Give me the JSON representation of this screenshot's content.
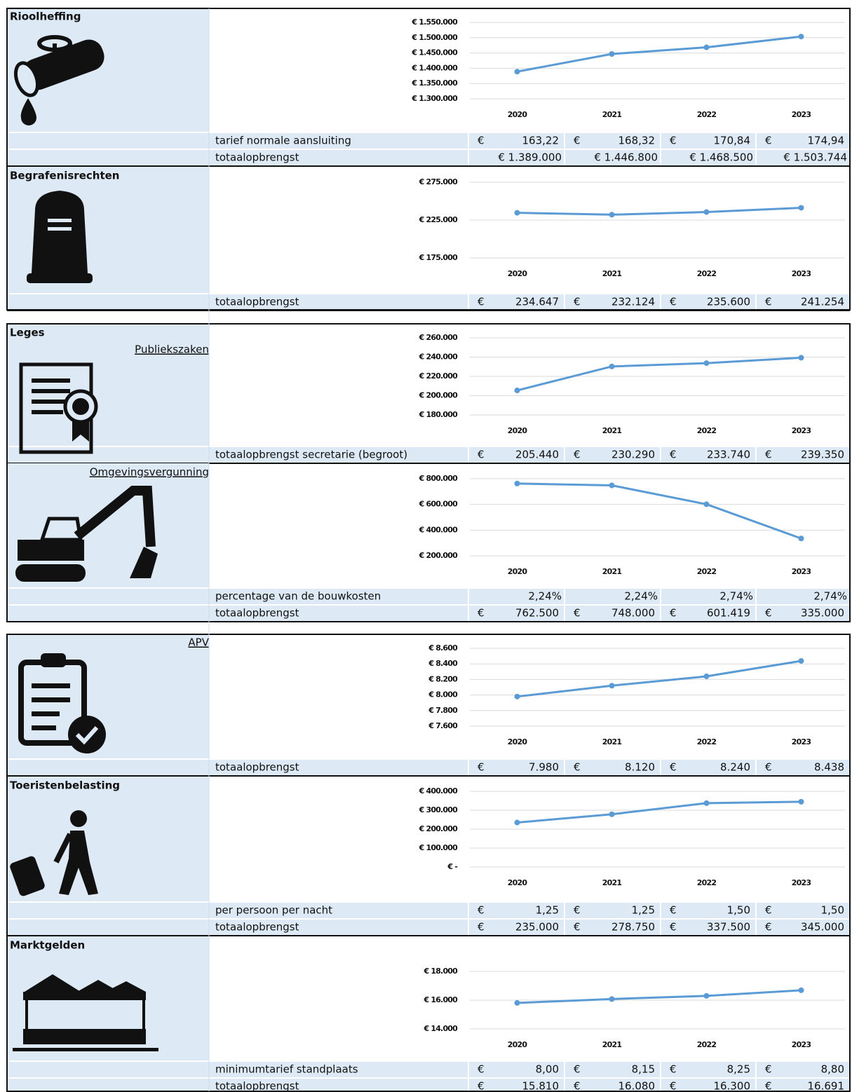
{
  "sections": [
    {
      "title": "Rioolheffing",
      "chart": {
        "type": "line",
        "x": [
          "2020",
          "2021",
          "2022",
          "2023"
        ],
        "values": [
          1389000,
          1446800,
          1468500,
          1503744
        ],
        "color": "#5b9bd5",
        "ylim": [
          1300000,
          1550000
        ],
        "yticks": [
          {
            "value": 1300000,
            "label": "€ 1.300.000"
          },
          {
            "value": 1350000,
            "label": "€ 1.350.000"
          },
          {
            "value": 1400000,
            "label": "€ 1.400.000"
          },
          {
            "value": 1450000,
            "label": "€ 1.450.000"
          },
          {
            "value": 1500000,
            "label": "€ 1.500.000"
          },
          {
            "value": 1550000,
            "label": "€ 1.550.000"
          }
        ],
        "grid": true
      },
      "rows": [
        {
          "label": "tarief normale aansluiting",
          "cells": [
            [
              "€",
              "163,22"
            ],
            [
              "€",
              "168,32"
            ],
            [
              "€",
              "170,84"
            ],
            [
              "€",
              "174,94"
            ]
          ]
        },
        {
          "label": "totaalopbrengst",
          "cells": [
            "€ 1.389.000",
            "€ 1.446.800",
            "€ 1.468.500",
            "€ 1.503.744"
          ]
        }
      ]
    },
    {
      "title": "Begrafenisrechten",
      "chart": {
        "type": "line",
        "x": [
          "2020",
          "2021",
          "2022",
          "2023"
        ],
        "values": [
          234647,
          232124,
          235600,
          241254
        ],
        "color": "#5b9bd5",
        "ylim": [
          175000,
          275000
        ],
        "yticks": [
          {
            "value": 175000,
            "label": "€ 175.000"
          },
          {
            "value": 225000,
            "label": "€ 225.000"
          },
          {
            "value": 275000,
            "label": "€ 275.000"
          }
        ],
        "grid": true
      },
      "rows": [
        {
          "label": "totaalopbrengst",
          "cells": [
            [
              "€",
              "234.647"
            ],
            [
              "€",
              "232.124"
            ],
            [
              "€",
              "235.600"
            ],
            [
              "€",
              "241.254"
            ]
          ]
        }
      ]
    },
    {
      "title": "Leges",
      "link": "Publiekszaken",
      "chart": {
        "type": "line",
        "x": [
          "2020",
          "2021",
          "2022",
          "2023"
        ],
        "values": [
          205440,
          230290,
          233740,
          239350
        ],
        "color": "#5b9bd5",
        "ylim": [
          180000,
          260000
        ],
        "yticks": [
          {
            "value": 180000,
            "label": "€ 180.000"
          },
          {
            "value": 200000,
            "label": "€ 200.000"
          },
          {
            "value": 220000,
            "label": "€ 220.000"
          },
          {
            "value": 240000,
            "label": "€ 240.000"
          },
          {
            "value": 260000,
            "label": "€ 260.000"
          }
        ],
        "grid": true
      },
      "rows": [
        {
          "label": "totaalopbrengst secretarie (begroot)",
          "cells": [
            [
              "€",
              "205.440"
            ],
            [
              "€",
              "230.290"
            ],
            [
              "€",
              "233.740"
            ],
            [
              "€",
              "239.350"
            ]
          ]
        }
      ]
    },
    {
      "link": "Omgevingsvergunning",
      "chart": {
        "type": "line",
        "x": [
          "2020",
          "2021",
          "2022",
          "2023"
        ],
        "values": [
          762500,
          748000,
          601419,
          335000
        ],
        "color": "#5b9bd5",
        "ylim": [
          200000,
          800000
        ],
        "yticks": [
          {
            "value": 200000,
            "label": "€ 200.000"
          },
          {
            "value": 400000,
            "label": "€ 400.000"
          },
          {
            "value": 600000,
            "label": "€ 600.000"
          },
          {
            "value": 800000,
            "label": "€ 800.000"
          }
        ],
        "grid": true
      },
      "rows": [
        {
          "label": "percentage van de bouwkosten",
          "cells": [
            "2,24%",
            "2,24%",
            "2,74%",
            "2,74%"
          ]
        },
        {
          "label": "totaalopbrengst",
          "cells": [
            [
              "€",
              "762.500"
            ],
            [
              "€",
              "748.000"
            ],
            [
              "€",
              "601.419"
            ],
            [
              "€",
              "335.000"
            ]
          ]
        }
      ]
    },
    {
      "link": "APV",
      "chart": {
        "type": "line",
        "x": [
          "2020",
          "2021",
          "2022",
          "2023"
        ],
        "values": [
          7980,
          8120,
          8240,
          8438
        ],
        "color": "#5b9bd5",
        "ylim": [
          7600,
          8600
        ],
        "yticks": [
          {
            "value": 7600,
            "label": "€ 7.600"
          },
          {
            "value": 7800,
            "label": "€ 7.800"
          },
          {
            "value": 8000,
            "label": "€ 8.000"
          },
          {
            "value": 8200,
            "label": "€ 8.200"
          },
          {
            "value": 8400,
            "label": "€ 8.400"
          },
          {
            "value": 8600,
            "label": "€ 8.600"
          }
        ],
        "grid": true
      },
      "rows": [
        {
          "label": "totaalopbrengst",
          "cells": [
            [
              "€",
              "7.980"
            ],
            [
              "€",
              "8.120"
            ],
            [
              "€",
              "8.240"
            ],
            [
              "€",
              "8.438"
            ]
          ]
        }
      ]
    },
    {
      "title": "Toeristenbelasting",
      "chart": {
        "type": "line",
        "x": [
          "2020",
          "2021",
          "2022",
          "2023"
        ],
        "values": [
          235000,
          278750,
          337500,
          345000
        ],
        "color": "#5b9bd5",
        "ylim": [
          0,
          400000
        ],
        "yticks": [
          {
            "value": 0,
            "label": "€ -"
          },
          {
            "value": 100000,
            "label": "€ 100.000"
          },
          {
            "value": 200000,
            "label": "€ 200.000"
          },
          {
            "value": 300000,
            "label": "€ 300.000"
          },
          {
            "value": 400000,
            "label": "€ 400.000"
          }
        ],
        "grid": true
      },
      "rows": [
        {
          "label": "per persoon per nacht",
          "cells": [
            [
              "€",
              "1,25"
            ],
            [
              "€",
              "1,25"
            ],
            [
              "€",
              "1,50"
            ],
            [
              "€",
              "1,50"
            ]
          ]
        },
        {
          "label": "totaalopbrengst",
          "cells": [
            [
              "€",
              "235.000"
            ],
            [
              "€",
              "278.750"
            ],
            [
              "€",
              "337.500"
            ],
            [
              "€",
              "345.000"
            ]
          ]
        }
      ]
    },
    {
      "title": "Marktgelden",
      "chart": {
        "type": "line",
        "x": [
          "2020",
          "2021",
          "2022",
          "2023"
        ],
        "values": [
          15810,
          16080,
          16300,
          16691
        ],
        "color": "#5b9bd5",
        "ylim": [
          14000,
          18000
        ],
        "yticks": [
          {
            "value": 14000,
            "label": "€ 14.000"
          },
          {
            "value": 16000,
            "label": "€ 16.000"
          },
          {
            "value": 18000,
            "label": "€ 18.000"
          }
        ],
        "grid": true
      },
      "rows": [
        {
          "label": "minimumtarief standplaats",
          "cells": [
            [
              "€",
              "8,00"
            ],
            [
              "€",
              "8,15"
            ],
            [
              "€",
              "8,25"
            ],
            [
              "€",
              "8,80"
            ]
          ]
        },
        {
          "label": "totaalopbrengst",
          "cells": [
            [
              "€",
              "15.810"
            ],
            [
              "€",
              "16.080"
            ],
            [
              "€",
              "16.300"
            ],
            [
              "€",
              "16.691"
            ]
          ]
        }
      ]
    }
  ]
}
